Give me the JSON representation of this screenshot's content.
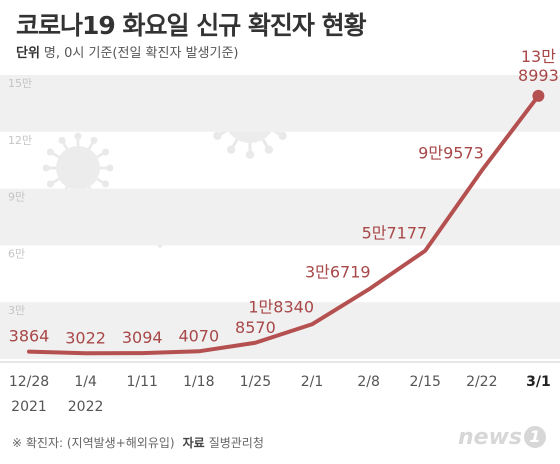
{
  "title": "코로나19 화요일 신규 확진자 현황",
  "unit_label": "단위",
  "unit_text": "명, 0시 기준(전일 확진자 발생기준)",
  "footnote": "※ 확진자: (지역발생+해외유입)",
  "source_label": "자료",
  "source": "질병관리청",
  "logo_text": "news",
  "logo_mark": "1",
  "colors": {
    "line": "#b55050",
    "label": "#a84848",
    "band": "#f0f0f0",
    "axis": "#cccccc"
  },
  "chart_data": {
    "type": "line",
    "title": "코로나19 화요일 신규 확진자 현황",
    "xlabel": "",
    "ylabel": "",
    "ylim": [
      0,
      150000
    ],
    "grid": "alternating horizontal bands",
    "y_ticks": [
      {
        "value": 30000,
        "label": "3만"
      },
      {
        "value": 60000,
        "label": "6만"
      },
      {
        "value": 90000,
        "label": "9만"
      },
      {
        "value": 120000,
        "label": "12만"
      },
      {
        "value": 150000,
        "label": "15만"
      }
    ],
    "x": [
      "12/28",
      "1/4",
      "1/11",
      "1/18",
      "1/25",
      "2/1",
      "2/8",
      "2/15",
      "2/22",
      "3/1"
    ],
    "x_sublabels": [
      "2021",
      "2022",
      "",
      "",
      "",
      "",
      "",
      "",
      "",
      ""
    ],
    "x_bold": [
      false,
      false,
      false,
      false,
      false,
      false,
      false,
      false,
      false,
      true
    ],
    "values": [
      3864,
      3022,
      3094,
      4070,
      8570,
      18340,
      36719,
      57177,
      99573,
      138993
    ],
    "data_labels": [
      "3864",
      "3022",
      "3094",
      "4070",
      "8570",
      "1만8340",
      "3만6719",
      "5만7177",
      "9만9573",
      "13만\n8993"
    ]
  }
}
